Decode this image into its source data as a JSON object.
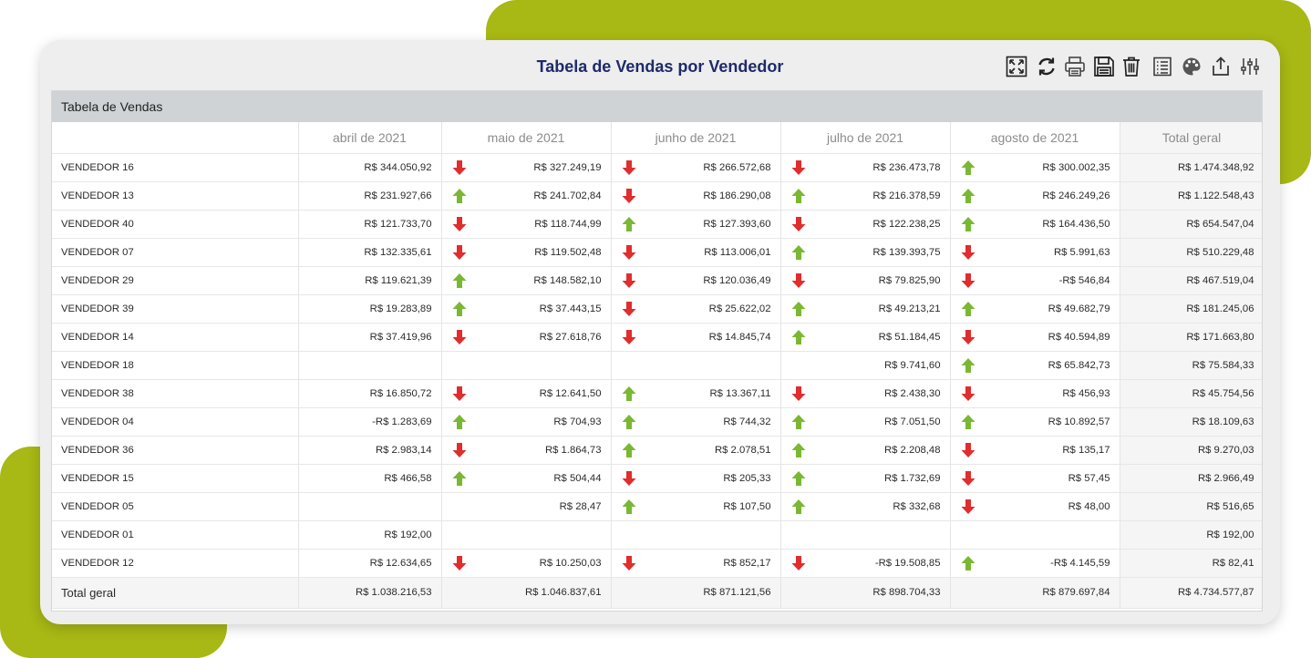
{
  "title": "Tabela de Vendas por Vendedor",
  "panel_title": "Tabela de Vendas",
  "colors": {
    "accent_green": "#a8b814",
    "title_blue": "#1e2a6b",
    "arrow_up": "#7ab833",
    "arrow_down": "#e02d2d"
  },
  "toolbar": [
    {
      "name": "expand-icon"
    },
    {
      "name": "refresh-icon"
    },
    {
      "name": "print-icon"
    },
    {
      "name": "save-icon"
    },
    {
      "name": "trash-icon"
    },
    {
      "name": "list-icon"
    },
    {
      "name": "palette-icon"
    },
    {
      "name": "share-icon"
    },
    {
      "name": "settings-sliders-icon"
    }
  ],
  "columns": [
    "",
    "abril de 2021",
    "maio de 2021",
    "junho de 2021",
    "julho de 2021",
    "agosto de 2021",
    "Total geral"
  ],
  "rows": [
    {
      "name": "VENDEDOR 16",
      "cells": [
        {
          "v": "R$ 344.050,92",
          "a": ""
        },
        {
          "v": "R$ 327.249,19",
          "a": "down"
        },
        {
          "v": "R$ 266.572,68",
          "a": "down"
        },
        {
          "v": "R$ 236.473,78",
          "a": "down"
        },
        {
          "v": "R$ 300.002,35",
          "a": "up"
        }
      ],
      "total": "R$ 1.474.348,92"
    },
    {
      "name": "VENDEDOR 13",
      "cells": [
        {
          "v": "R$ 231.927,66",
          "a": ""
        },
        {
          "v": "R$ 241.702,84",
          "a": "up"
        },
        {
          "v": "R$ 186.290,08",
          "a": "down"
        },
        {
          "v": "R$ 216.378,59",
          "a": "up"
        },
        {
          "v": "R$ 246.249,26",
          "a": "up"
        }
      ],
      "total": "R$ 1.122.548,43"
    },
    {
      "name": "VENDEDOR 40",
      "cells": [
        {
          "v": "R$ 121.733,70",
          "a": ""
        },
        {
          "v": "R$ 118.744,99",
          "a": "down"
        },
        {
          "v": "R$ 127.393,60",
          "a": "up"
        },
        {
          "v": "R$ 122.238,25",
          "a": "down"
        },
        {
          "v": "R$ 164.436,50",
          "a": "up"
        }
      ],
      "total": "R$ 654.547,04"
    },
    {
      "name": "VENDEDOR 07",
      "cells": [
        {
          "v": "R$ 132.335,61",
          "a": ""
        },
        {
          "v": "R$ 119.502,48",
          "a": "down"
        },
        {
          "v": "R$ 113.006,01",
          "a": "down"
        },
        {
          "v": "R$ 139.393,75",
          "a": "up"
        },
        {
          "v": "R$ 5.991,63",
          "a": "down"
        }
      ],
      "total": "R$ 510.229,48"
    },
    {
      "name": "VENDEDOR 29",
      "cells": [
        {
          "v": "R$ 119.621,39",
          "a": ""
        },
        {
          "v": "R$ 148.582,10",
          "a": "up"
        },
        {
          "v": "R$ 120.036,49",
          "a": "down"
        },
        {
          "v": "R$ 79.825,90",
          "a": "down"
        },
        {
          "v": "-R$ 546,84",
          "a": "down"
        }
      ],
      "total": "R$ 467.519,04"
    },
    {
      "name": "VENDEDOR 39",
      "cells": [
        {
          "v": "R$ 19.283,89",
          "a": ""
        },
        {
          "v": "R$ 37.443,15",
          "a": "up"
        },
        {
          "v": "R$ 25.622,02",
          "a": "down"
        },
        {
          "v": "R$ 49.213,21",
          "a": "up"
        },
        {
          "v": "R$ 49.682,79",
          "a": "up"
        }
      ],
      "total": "R$ 181.245,06"
    },
    {
      "name": "VENDEDOR 14",
      "cells": [
        {
          "v": "R$ 37.419,96",
          "a": ""
        },
        {
          "v": "R$ 27.618,76",
          "a": "down"
        },
        {
          "v": "R$ 14.845,74",
          "a": "down"
        },
        {
          "v": "R$ 51.184,45",
          "a": "up"
        },
        {
          "v": "R$ 40.594,89",
          "a": "down"
        }
      ],
      "total": "R$ 171.663,80"
    },
    {
      "name": "VENDEDOR 18",
      "cells": [
        {
          "v": "",
          "a": ""
        },
        {
          "v": "",
          "a": ""
        },
        {
          "v": "",
          "a": ""
        },
        {
          "v": "R$ 9.741,60",
          "a": ""
        },
        {
          "v": "R$ 65.842,73",
          "a": "up"
        }
      ],
      "total": "R$ 75.584,33"
    },
    {
      "name": "VENDEDOR 38",
      "cells": [
        {
          "v": "R$ 16.850,72",
          "a": ""
        },
        {
          "v": "R$ 12.641,50",
          "a": "down"
        },
        {
          "v": "R$ 13.367,11",
          "a": "up"
        },
        {
          "v": "R$ 2.438,30",
          "a": "down"
        },
        {
          "v": "R$ 456,93",
          "a": "down"
        }
      ],
      "total": "R$ 45.754,56"
    },
    {
      "name": "VENDEDOR 04",
      "cells": [
        {
          "v": "-R$ 1.283,69",
          "a": ""
        },
        {
          "v": "R$ 704,93",
          "a": "up"
        },
        {
          "v": "R$ 744,32",
          "a": "up"
        },
        {
          "v": "R$ 7.051,50",
          "a": "up"
        },
        {
          "v": "R$ 10.892,57",
          "a": "up"
        }
      ],
      "total": "R$ 18.109,63"
    },
    {
      "name": "VENDEDOR 36",
      "cells": [
        {
          "v": "R$ 2.983,14",
          "a": ""
        },
        {
          "v": "R$ 1.864,73",
          "a": "down"
        },
        {
          "v": "R$ 2.078,51",
          "a": "up"
        },
        {
          "v": "R$ 2.208,48",
          "a": "up"
        },
        {
          "v": "R$ 135,17",
          "a": "down"
        }
      ],
      "total": "R$ 9.270,03"
    },
    {
      "name": "VENDEDOR 15",
      "cells": [
        {
          "v": "R$ 466,58",
          "a": ""
        },
        {
          "v": "R$ 504,44",
          "a": "up"
        },
        {
          "v": "R$ 205,33",
          "a": "down"
        },
        {
          "v": "R$ 1.732,69",
          "a": "up"
        },
        {
          "v": "R$ 57,45",
          "a": "down"
        }
      ],
      "total": "R$ 2.966,49"
    },
    {
      "name": "VENDEDOR 05",
      "cells": [
        {
          "v": "",
          "a": ""
        },
        {
          "v": "R$ 28,47",
          "a": ""
        },
        {
          "v": "R$ 107,50",
          "a": "up"
        },
        {
          "v": "R$ 332,68",
          "a": "up"
        },
        {
          "v": "R$ 48,00",
          "a": "down"
        }
      ],
      "total": "R$ 516,65"
    },
    {
      "name": "VENDEDOR 01",
      "cells": [
        {
          "v": "R$ 192,00",
          "a": ""
        },
        {
          "v": "",
          "a": ""
        },
        {
          "v": "",
          "a": ""
        },
        {
          "v": "",
          "a": ""
        },
        {
          "v": "",
          "a": ""
        }
      ],
      "total": "R$ 192,00"
    },
    {
      "name": "VENDEDOR 12",
      "cells": [
        {
          "v": "R$ 12.634,65",
          "a": ""
        },
        {
          "v": "R$ 10.250,03",
          "a": "down"
        },
        {
          "v": "R$ 852,17",
          "a": "down"
        },
        {
          "v": "-R$ 19.508,85",
          "a": "down"
        },
        {
          "v": "-R$ 4.145,59",
          "a": "up"
        }
      ],
      "total": "R$ 82,41"
    }
  ],
  "grand_total": {
    "name": "Total geral",
    "cells": [
      "R$ 1.038.216,53",
      "R$ 1.046.837,61",
      "R$ 871.121,56",
      "R$ 898.704,33",
      "R$ 879.697,84"
    ],
    "total": "R$ 4.734.577,87"
  }
}
